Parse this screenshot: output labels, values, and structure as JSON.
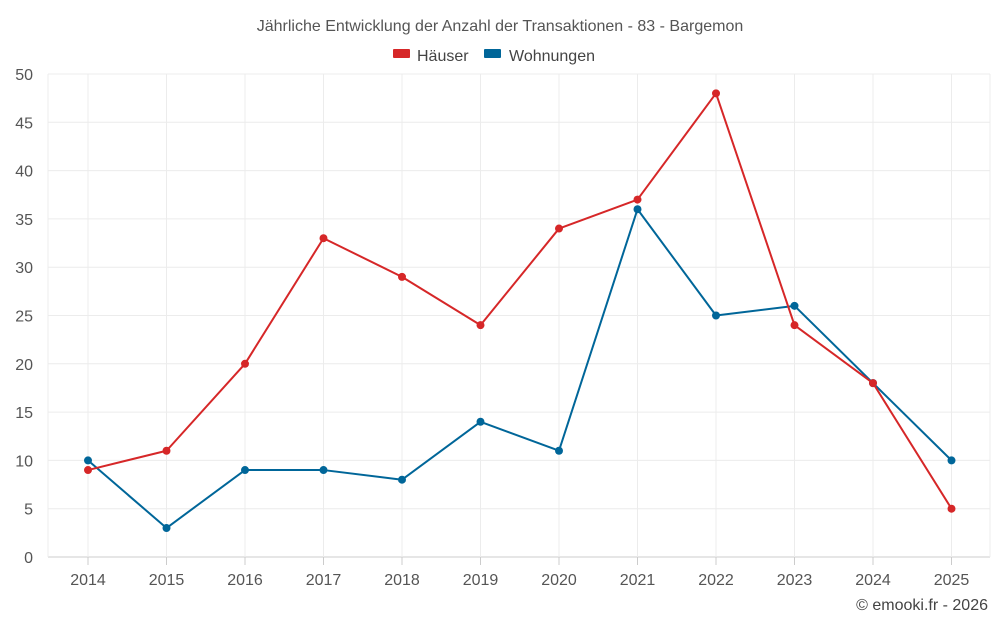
{
  "chart_data": {
    "type": "line",
    "title": "Jährliche Entwicklung der Anzahl der Transaktionen - 83 - Bargemon",
    "categories": [
      "2014",
      "2015",
      "2016",
      "2017",
      "2018",
      "2019",
      "2020",
      "2021",
      "2022",
      "2023",
      "2024",
      "2025"
    ],
    "series": [
      {
        "name": "Häuser",
        "color": "#d62728",
        "values": [
          9,
          11,
          20,
          33,
          29,
          24,
          34,
          37,
          48,
          24,
          18,
          5
        ]
      },
      {
        "name": "Wohnungen",
        "color": "#006699",
        "values": [
          10,
          3,
          9,
          9,
          8,
          14,
          11,
          36,
          25,
          26,
          18,
          10
        ]
      }
    ],
    "ylim": [
      0,
      50
    ],
    "yticks": [
      "0",
      "5",
      "10",
      "15",
      "20",
      "25",
      "30",
      "35",
      "40",
      "45",
      "50"
    ],
    "xlabel": "",
    "ylabel": "",
    "grid": true,
    "legend_position": "top-center"
  },
  "credit": "© emooki.fr - 2026"
}
